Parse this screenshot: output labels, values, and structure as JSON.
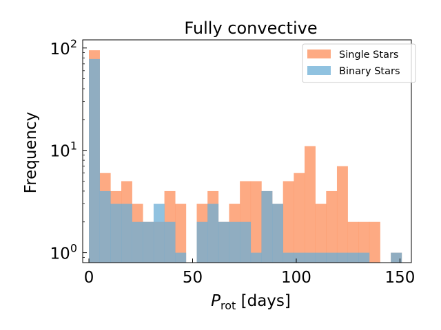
{
  "chart_data": {
    "type": "bar",
    "subtype": "overlaid-histogram",
    "title": "Fully convective",
    "xlabel_main": "P",
    "xlabel_sub": "rot",
    "xlabel_suffix": " [days]",
    "ylabel": "Frequency",
    "y_scale": "log",
    "xlim": [
      -3,
      155.5
    ],
    "ylim": [
      0.8,
      120
    ],
    "x_ticks": [
      0,
      50,
      100,
      150
    ],
    "x_tick_labels": [
      "0",
      "50",
      "100",
      "150"
    ],
    "y_ticks": [
      1,
      10,
      100
    ],
    "bin_edges": [
      0,
      5.2,
      10.4,
      15.6,
      20.8,
      26,
      31.2,
      36.4,
      41.6,
      46.8,
      52,
      57.2,
      62.4,
      67.6,
      72.8,
      78,
      83.2,
      88.4,
      93.6,
      98.8,
      104,
      109.2,
      114.4,
      119.6,
      124.8,
      130,
      135.2,
      140.4,
      145.6,
      150.8
    ],
    "series": [
      {
        "name": "Single Stars",
        "color": "#fc8d59",
        "alpha": 0.75,
        "values": [
          95,
          6,
          4,
          5,
          3,
          2,
          2,
          4,
          3,
          0,
          3,
          4,
          2,
          3,
          5,
          5,
          4,
          3,
          5,
          6,
          11,
          3,
          4,
          7,
          2,
          2,
          2,
          0,
          1
        ]
      },
      {
        "name": "Binary Stars",
        "color": "#6baed6",
        "alpha": 0.75,
        "values": [
          78,
          4,
          3,
          3,
          2,
          2,
          3,
          2,
          1,
          0,
          2,
          3,
          2,
          2,
          2,
          1,
          4,
          3,
          1,
          1,
          1,
          1,
          1,
          1,
          1,
          1,
          0,
          0,
          1
        ]
      }
    ],
    "legend_position": "upper right",
    "grid": false
  }
}
